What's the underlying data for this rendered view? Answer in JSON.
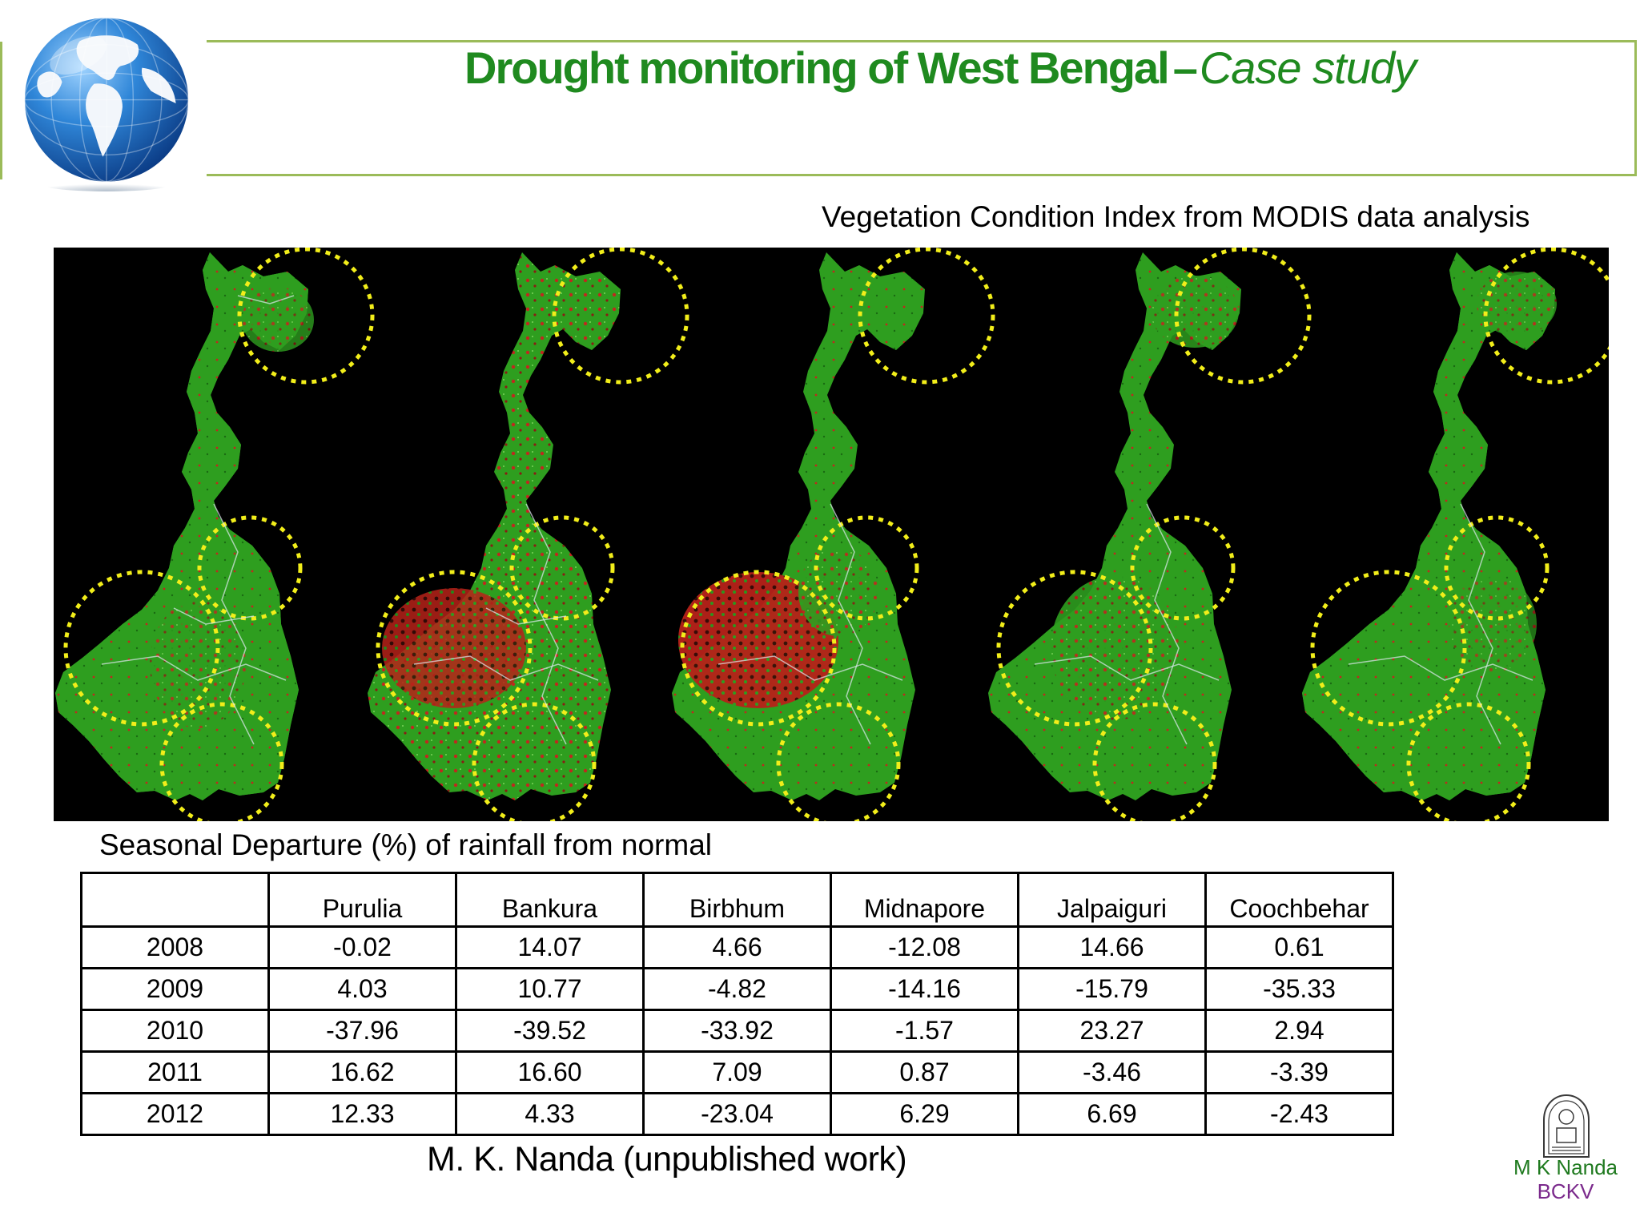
{
  "header": {
    "title_main": "Drought monitoring of West Bengal",
    "title_dash": "–",
    "title_italic": "Case study"
  },
  "map_caption": "Vegetation Condition Index from MODIS data analysis",
  "colors": {
    "title_green": "#1f8a1f",
    "frame_green": "#9bbb59",
    "veg_green": "#2e9e1f",
    "stress_red": "#c0281e",
    "circle_yellow": "#f2ee1a",
    "author_green": "#1f7a1f",
    "inst_purple": "#7b2a8c"
  },
  "rainfall_table": {
    "caption": "Seasonal Departure (%) of rainfall from normal",
    "columns": [
      "",
      "Purulia",
      "Bankura",
      "Birbhum",
      "Midnapore",
      "Jalpaiguri",
      "Coochbehar"
    ],
    "rows": [
      [
        "2008",
        "-0.02",
        "14.07",
        "4.66",
        "-12.08",
        "14.66",
        "0.61"
      ],
      [
        "2009",
        "4.03",
        "10.77",
        "-4.82",
        "-14.16",
        "-15.79",
        "-35.33"
      ],
      [
        "2010",
        "-37.96",
        "-39.52",
        "-33.92",
        "-1.57",
        "23.27",
        "2.94"
      ],
      [
        "2011",
        "16.62",
        "16.60",
        "7.09",
        "0.87",
        "-3.46",
        "-3.39"
      ],
      [
        "2012",
        "12.33",
        "4.33",
        "-23.04",
        "6.29",
        "6.69",
        "-2.43"
      ]
    ]
  },
  "footer": {
    "credit": "M. K. Nanda (unpublished work)",
    "author": "M K Nanda",
    "institution": "BCKV"
  },
  "icons": [
    "globe-icon",
    "bckv-seal-icon"
  ]
}
